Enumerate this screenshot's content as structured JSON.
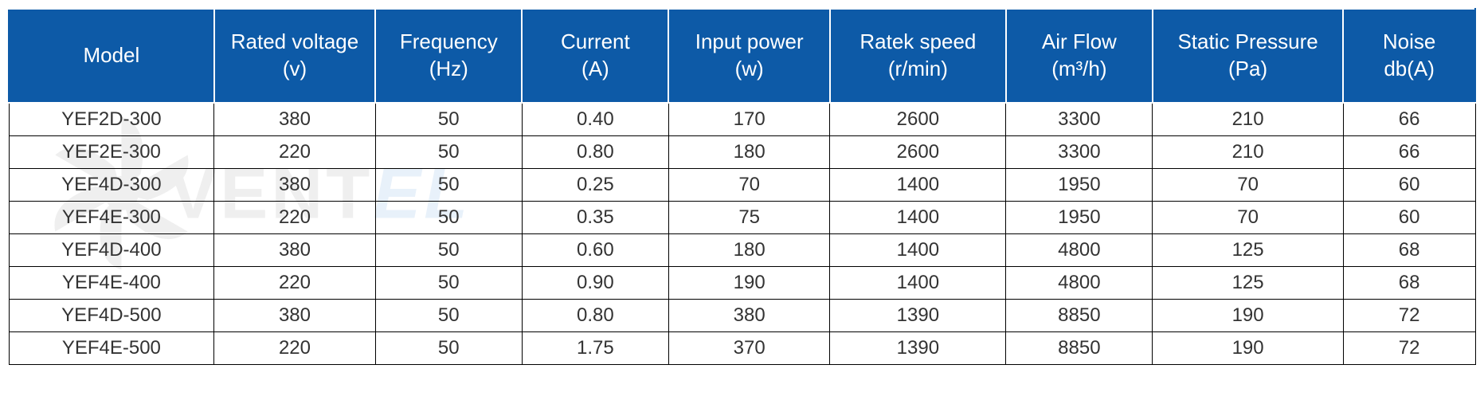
{
  "table": {
    "header_bg": "#0d5aa7",
    "header_text_color": "#ffffff",
    "cell_border_color": "#000000",
    "cell_text_color": "#333333",
    "header_fontsize": 26,
    "cell_fontsize": 24,
    "columns": [
      {
        "key": "model",
        "label_line1": "Model",
        "label_line2": "",
        "width": "14%"
      },
      {
        "key": "voltage",
        "label_line1": "Rated voltage",
        "label_line2": "(v)",
        "width": "11%"
      },
      {
        "key": "frequency",
        "label_line1": "Frequency",
        "label_line2": "(Hz)",
        "width": "10%"
      },
      {
        "key": "current",
        "label_line1": "Current",
        "label_line2": "(A)",
        "width": "10%"
      },
      {
        "key": "power",
        "label_line1": "Input power",
        "label_line2": "(w)",
        "width": "11%"
      },
      {
        "key": "speed",
        "label_line1": "Ratek speed",
        "label_line2": "(r/min)",
        "width": "12%"
      },
      {
        "key": "airflow",
        "label_line1": "Air Flow",
        "label_line2": "(m³/h)",
        "width": "10%"
      },
      {
        "key": "pressure",
        "label_line1": "Static Pressure",
        "label_line2": "(Pa)",
        "width": "13%"
      },
      {
        "key": "noise",
        "label_line1": "Noise",
        "label_line2": "db(A)",
        "width": "9%"
      }
    ],
    "rows": [
      [
        "YEF2D-300",
        "380",
        "50",
        "0.40",
        "170",
        "2600",
        "3300",
        "210",
        "66"
      ],
      [
        "YEF2E-300",
        "220",
        "50",
        "0.80",
        "180",
        "2600",
        "3300",
        "210",
        "66"
      ],
      [
        "YEF4D-300",
        "380",
        "50",
        "0.25",
        "70",
        "1400",
        "1950",
        "70",
        "60"
      ],
      [
        "YEF4E-300",
        "220",
        "50",
        "0.35",
        "75",
        "1400",
        "1950",
        "70",
        "60"
      ],
      [
        "YEF4D-400",
        "380",
        "50",
        "0.60",
        "180",
        "1400",
        "4800",
        "125",
        "68"
      ],
      [
        "YEF4E-400",
        "220",
        "50",
        "0.90",
        "190",
        "1400",
        "4800",
        "125",
        "68"
      ],
      [
        "YEF4D-500",
        "380",
        "50",
        "0.80",
        "380",
        "1390",
        "8850",
        "190",
        "72"
      ],
      [
        "YEF4E-500",
        "220",
        "50",
        "1.75",
        "370",
        "1390",
        "8850",
        "190",
        "72"
      ]
    ]
  },
  "watermark": {
    "text_main": "VENT",
    "text_accent": "EL",
    "main_color": "#808080",
    "accent_color": "#4a90d9",
    "opacity": 0.12
  }
}
